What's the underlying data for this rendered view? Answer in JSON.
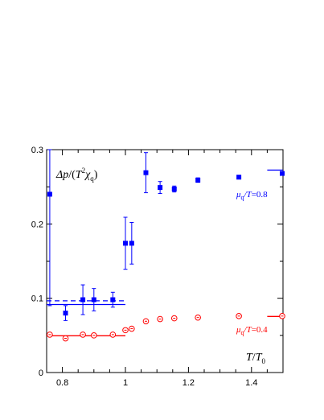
{
  "chart_data": {
    "type": "scatter",
    "xlim": [
      0.75,
      1.5
    ],
    "ylim": [
      0,
      0.3
    ],
    "x_ticks": [
      0.8,
      1.0,
      1.2,
      1.4
    ],
    "x_tick_labels": [
      "0.8",
      "1",
      "1.2",
      "1.4"
    ],
    "y_ticks": [
      0,
      0.1,
      0.2,
      0.3
    ],
    "y_tick_labels": [
      "0",
      "0.1",
      "0.2",
      "0.3"
    ],
    "grid": false,
    "annotations": {
      "ylabel": "Δp/(T²χq)",
      "xlabel": "T/T0",
      "mu08": "μq/T=0.8",
      "mu04": "μq/T=0.4"
    },
    "series": [
      {
        "marker": "filled-square",
        "color": "#0000ff",
        "points": [
          {
            "x": 0.76,
            "y": 0.24,
            "err": 0.15
          },
          {
            "x": 0.81,
            "y": 0.08,
            "err": 0.01
          },
          {
            "x": 0.865,
            "y": 0.098,
            "err": 0.02
          },
          {
            "x": 0.9,
            "y": 0.098,
            "err": 0.015
          },
          {
            "x": 0.96,
            "y": 0.098,
            "err": 0.01
          },
          {
            "x": 1.0,
            "y": 0.174,
            "err": 0.035
          },
          {
            "x": 1.02,
            "y": 0.174,
            "err": 0.028
          },
          {
            "x": 1.065,
            "y": 0.269,
            "err": 0.027
          },
          {
            "x": 1.11,
            "y": 0.249,
            "err": 0.008
          },
          {
            "x": 1.155,
            "y": 0.247,
            "err": 0.004
          },
          {
            "x": 1.23,
            "y": 0.259,
            "err": 0.003
          },
          {
            "x": 1.36,
            "y": 0.263,
            "err": 0.0
          },
          {
            "x": 1.5,
            "y": 0.268,
            "err": 0.0
          }
        ]
      },
      {
        "marker": "open-circle-dot",
        "color": "#ff0000",
        "points": [
          {
            "x": 0.76,
            "y": 0.051,
            "err": 0.0
          },
          {
            "x": 0.81,
            "y": 0.046,
            "err": 0.0
          },
          {
            "x": 0.865,
            "y": 0.051,
            "err": 0.0
          },
          {
            "x": 0.9,
            "y": 0.05,
            "err": 0.0
          },
          {
            "x": 0.96,
            "y": 0.051,
            "err": 0.0
          },
          {
            "x": 1.0,
            "y": 0.057,
            "err": 0.0
          },
          {
            "x": 1.02,
            "y": 0.059,
            "err": 0.0
          },
          {
            "x": 1.065,
            "y": 0.069,
            "err": 0.0
          },
          {
            "x": 1.11,
            "y": 0.072,
            "err": 0.0
          },
          {
            "x": 1.155,
            "y": 0.073,
            "err": 0.0
          },
          {
            "x": 1.23,
            "y": 0.074,
            "err": 0.0
          },
          {
            "x": 1.36,
            "y": 0.076,
            "err": 0.0
          },
          {
            "x": 1.5,
            "y": 0.076,
            "err": 0.0
          }
        ]
      }
    ],
    "reference_lines": [
      {
        "x_from": 0.75,
        "x_to": 1.0,
        "y": 0.0965,
        "color": "#0000ff",
        "style": "dashed"
      },
      {
        "x_from": 0.75,
        "x_to": 1.0,
        "y": 0.0915,
        "color": "#0000ff",
        "style": "solid"
      },
      {
        "x_from": 1.45,
        "x_to": 1.5,
        "y": 0.2725,
        "color": "#0000ff",
        "style": "solid"
      },
      {
        "x_from": 0.75,
        "x_to": 1.0,
        "y": 0.0495,
        "color": "#ff0000",
        "style": "solid"
      },
      {
        "x_from": 1.45,
        "x_to": 1.5,
        "y": 0.0755,
        "color": "#ff0000",
        "style": "solid"
      }
    ]
  }
}
